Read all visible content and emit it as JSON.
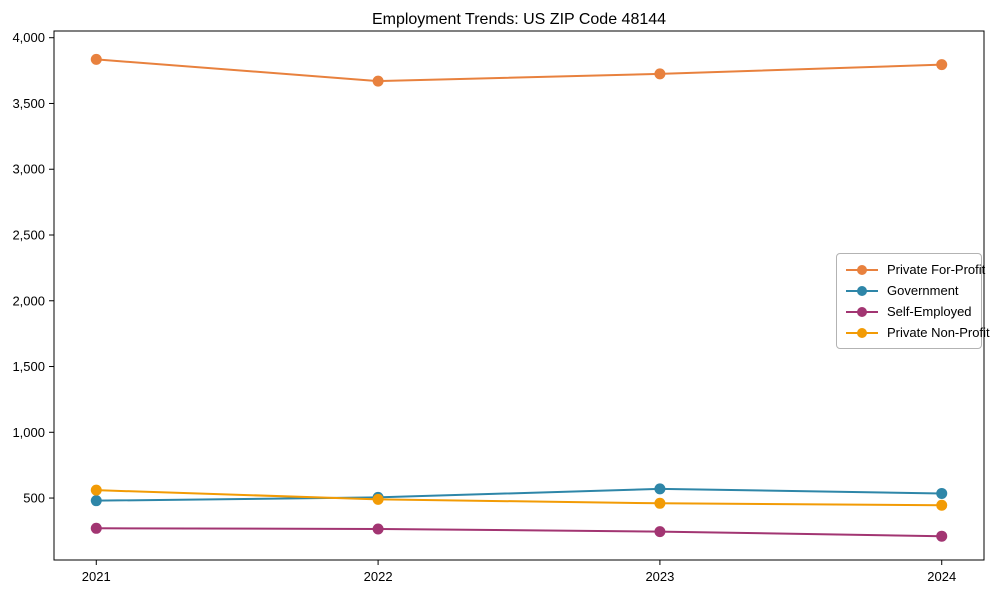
{
  "page": {
    "background_color": "#ffffff",
    "text_color": "#000000",
    "frame_color": "#000000",
    "legend_border_color": "#b3b3b3"
  },
  "chart_data": {
    "type": "line",
    "title": "Employment Trends: US ZIP Code 48144",
    "xlabel": "",
    "ylabel": "",
    "grid": false,
    "marker": "circle",
    "legend_position": "right",
    "x": [
      2021,
      2022,
      2023,
      2024
    ],
    "x_tick_labels": [
      "2021",
      "2022",
      "2023",
      "2024"
    ],
    "yticks": [
      {
        "value": 500,
        "label": "500"
      },
      {
        "value": 1000,
        "label": "1,000"
      },
      {
        "value": 1500,
        "label": "1,500"
      },
      {
        "value": 2000,
        "label": "2,000"
      },
      {
        "value": 2500,
        "label": "2,500"
      },
      {
        "value": 3000,
        "label": "3,000"
      },
      {
        "value": 3500,
        "label": "3,500"
      },
      {
        "value": 4000,
        "label": "4,000"
      }
    ],
    "xlim": [
      2020.85,
      2024.15
    ],
    "ylim": [
      29,
      4051
    ],
    "series": [
      {
        "name": "Private For-Profit",
        "color": "#E8813E",
        "values": [
          3835,
          3670,
          3725,
          3795
        ]
      },
      {
        "name": "Government",
        "color": "#2E86A8",
        "values": [
          480,
          505,
          570,
          535
        ]
      },
      {
        "name": "Self-Employed",
        "color": "#A23572",
        "values": [
          270,
          265,
          245,
          210
        ]
      },
      {
        "name": "Private Non-Profit",
        "color": "#F29B05",
        "values": [
          560,
          490,
          460,
          445
        ]
      }
    ]
  }
}
